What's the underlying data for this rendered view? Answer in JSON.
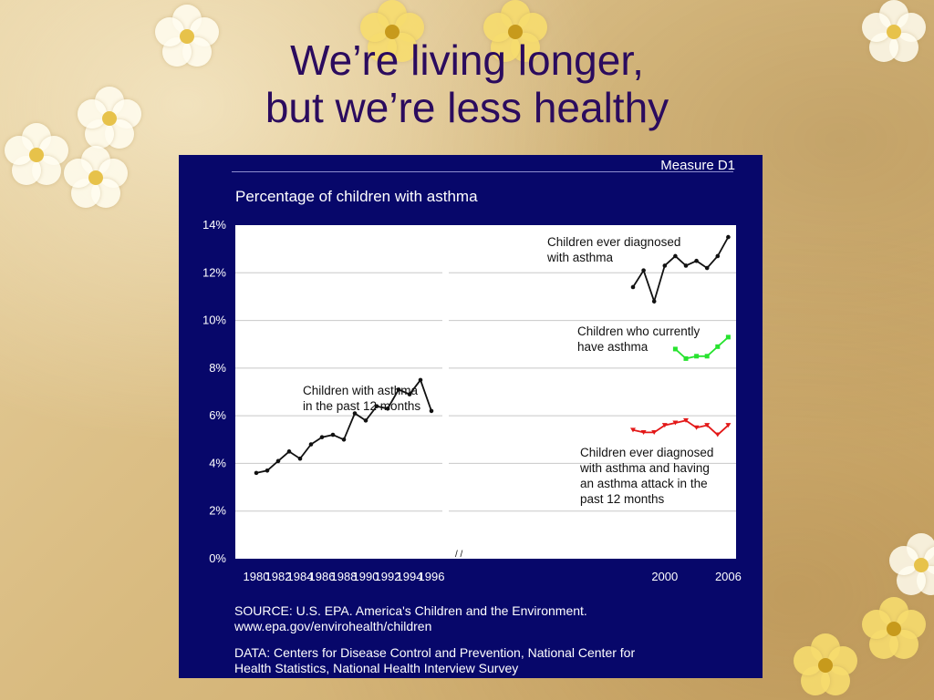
{
  "slide": {
    "title_line1": "We’re living longer,",
    "title_line2": "but we’re less healthy",
    "colors": {
      "title": "#2b0b5e",
      "panel": "#07076a"
    }
  },
  "chart_data": {
    "type": "line",
    "measure": "Measure D1",
    "title": "Percentage of children with asthma",
    "ylim": [
      0,
      14
    ],
    "yticks": [
      "0%",
      "2%",
      "4%",
      "6%",
      "8%",
      "10%",
      "12%",
      "14%"
    ],
    "xticks": [
      "1980",
      "1982",
      "1984",
      "1986",
      "1988",
      "1990",
      "1992",
      "1994",
      "1996",
      "2000",
      "2006"
    ],
    "grid": true,
    "series": [
      {
        "name": "Children with asthma in the past 12 months",
        "label_lines": [
          "Children with asthma",
          "in the past 12 months"
        ],
        "color": "#111111",
        "x": [
          1980,
          1981,
          1982,
          1983,
          1984,
          1985,
          1986,
          1987,
          1988,
          1989,
          1990,
          1991,
          1992,
          1993,
          1994,
          1995,
          1996
        ],
        "y": [
          3.6,
          3.7,
          4.1,
          4.5,
          4.2,
          4.8,
          5.1,
          5.2,
          5.0,
          6.1,
          5.8,
          6.4,
          6.3,
          7.1,
          6.9,
          7.5,
          6.2
        ]
      },
      {
        "name": "Children ever diagnosed with asthma",
        "label_lines": [
          "Children ever diagnosed",
          "with asthma"
        ],
        "color": "#111111",
        "x": [
          1997,
          1998,
          1999,
          2000,
          2001,
          2002,
          2003,
          2004,
          2005,
          2006
        ],
        "y": [
          11.4,
          12.1,
          10.8,
          12.3,
          12.7,
          12.3,
          12.5,
          12.2,
          12.7,
          13.5
        ]
      },
      {
        "name": "Children who currently have asthma",
        "label_lines": [
          "Children who currently",
          "have asthma"
        ],
        "color": "#27e32f",
        "x": [
          2001,
          2002,
          2003,
          2004,
          2005,
          2006
        ],
        "y": [
          8.8,
          8.4,
          8.5,
          8.5,
          8.9,
          9.3
        ]
      },
      {
        "name": "Children ever diagnosed with asthma and having an asthma attack in the past 12 months",
        "label_lines": [
          "Children ever diagnosed",
          "with asthma and having",
          "an asthma attack in the",
          "past 12 months"
        ],
        "color": "#e31818",
        "x": [
          1997,
          1998,
          1999,
          2000,
          2001,
          2002,
          2003,
          2004,
          2005,
          2006
        ],
        "y": [
          5.4,
          5.3,
          5.3,
          5.6,
          5.7,
          5.8,
          5.5,
          5.6,
          5.2,
          5.6
        ]
      }
    ]
  },
  "source": {
    "source_line1": "SOURCE: U.S. EPA. America's Children and the Environment.",
    "source_line2": "www.epa.gov/envirohealth/children",
    "data_line1": "DATA: Centers for Disease Control and Prevention, National Center for",
    "data_line2": "Health Statistics, National Health Interview Survey"
  }
}
